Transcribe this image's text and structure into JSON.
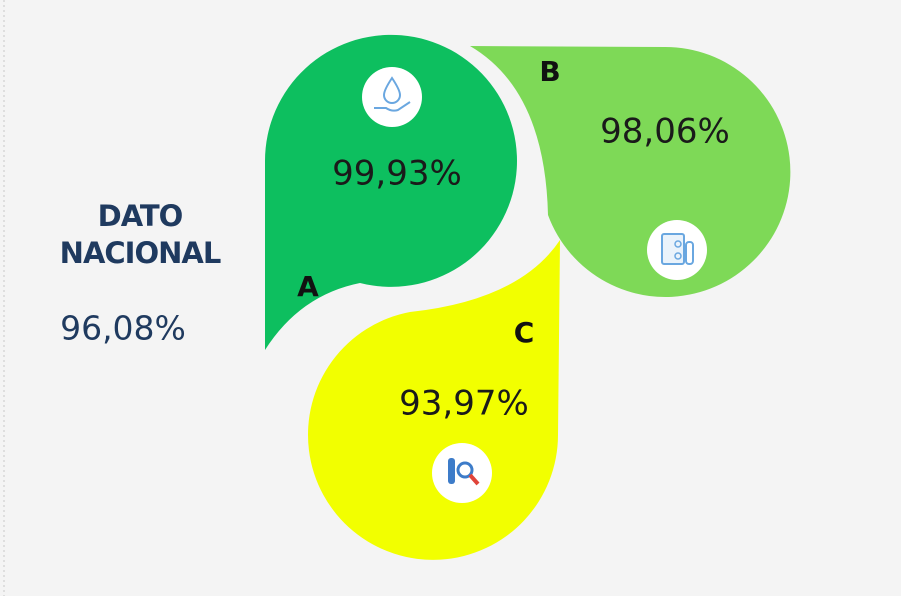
{
  "national": {
    "label_lines": [
      "DATO",
      "NACIONAL"
    ],
    "value": "96,08%"
  },
  "segments": [
    {
      "label": "A",
      "value": "99,93%",
      "color": "#0dbf5f"
    },
    {
      "label": "B",
      "value": "98,06%",
      "color": "#7ed957"
    },
    {
      "label": "C",
      "value": "93,97%",
      "color": "#f2ff00"
    }
  ]
}
